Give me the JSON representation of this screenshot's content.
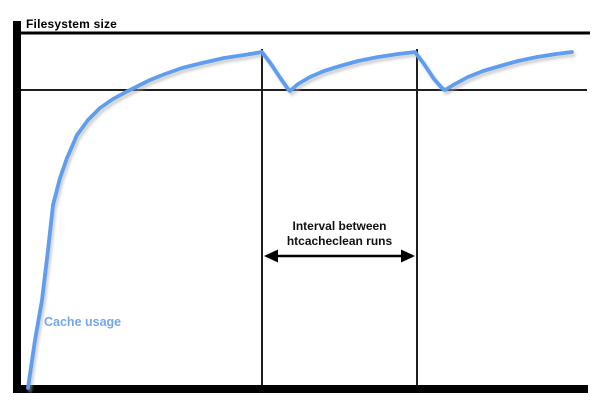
{
  "labels": {
    "filesystem_size": "Filesystem size",
    "interval_line1": "Interval between",
    "interval_line2": "htcacheclean runs",
    "cache_usage": "Cache usage"
  },
  "colors": {
    "curve_blue": "#5f9df0",
    "curve_shadow": "#a8a8a8",
    "cache_label_blue": "#74a7f0",
    "axis_black": "#000000",
    "thin_line": "#1e1e1e"
  },
  "chart_data": {
    "type": "line",
    "title": "Filesystem size",
    "xlabel": "",
    "ylabel": "Filesystem size",
    "axis_ticks": "none",
    "grid": false,
    "legend_position": "none",
    "series": [
      {
        "name": "Cache usage",
        "color": "#5f9df0",
        "points": [
          [
            28,
            388
          ],
          [
            35,
            340
          ],
          [
            42,
            300
          ],
          [
            48,
            250
          ],
          [
            53,
            205
          ],
          [
            60,
            178
          ],
          [
            67,
            158
          ],
          [
            77,
            135
          ],
          [
            88,
            120
          ],
          [
            100,
            108
          ],
          [
            113,
            99
          ],
          [
            126,
            92
          ],
          [
            136,
            87
          ],
          [
            150,
            80
          ],
          [
            165,
            74
          ],
          [
            182,
            68
          ],
          [
            202,
            63
          ],
          [
            224,
            58
          ],
          [
            244,
            55
          ],
          [
            262,
            52
          ],
          [
            271,
            64
          ],
          [
            281,
            79
          ],
          [
            288,
            89
          ],
          [
            290,
            91
          ],
          [
            298,
            84
          ],
          [
            310,
            77
          ],
          [
            324,
            71
          ],
          [
            340,
            66
          ],
          [
            358,
            61
          ],
          [
            378,
            57
          ],
          [
            398,
            54
          ],
          [
            415,
            52
          ],
          [
            424,
            64
          ],
          [
            434,
            79
          ],
          [
            442,
            88
          ],
          [
            445,
            90
          ],
          [
            455,
            84
          ],
          [
            468,
            77
          ],
          [
            483,
            71
          ],
          [
            500,
            66
          ],
          [
            518,
            61
          ],
          [
            537,
            57
          ],
          [
            556,
            54
          ],
          [
            572,
            52
          ]
        ]
      }
    ],
    "filesystem_size_line": {
      "label": "Filesystem size",
      "y": 33
    },
    "cleanup_threshold_line": {
      "y": 90
    },
    "cleanup_run_lines_x": [
      262,
      417
    ],
    "interval_annotation": {
      "text_line1": "Interval between",
      "text_line2": "htcacheclean runs",
      "arrow_y": 256
    },
    "cache_usage_label": "Cache usage"
  }
}
